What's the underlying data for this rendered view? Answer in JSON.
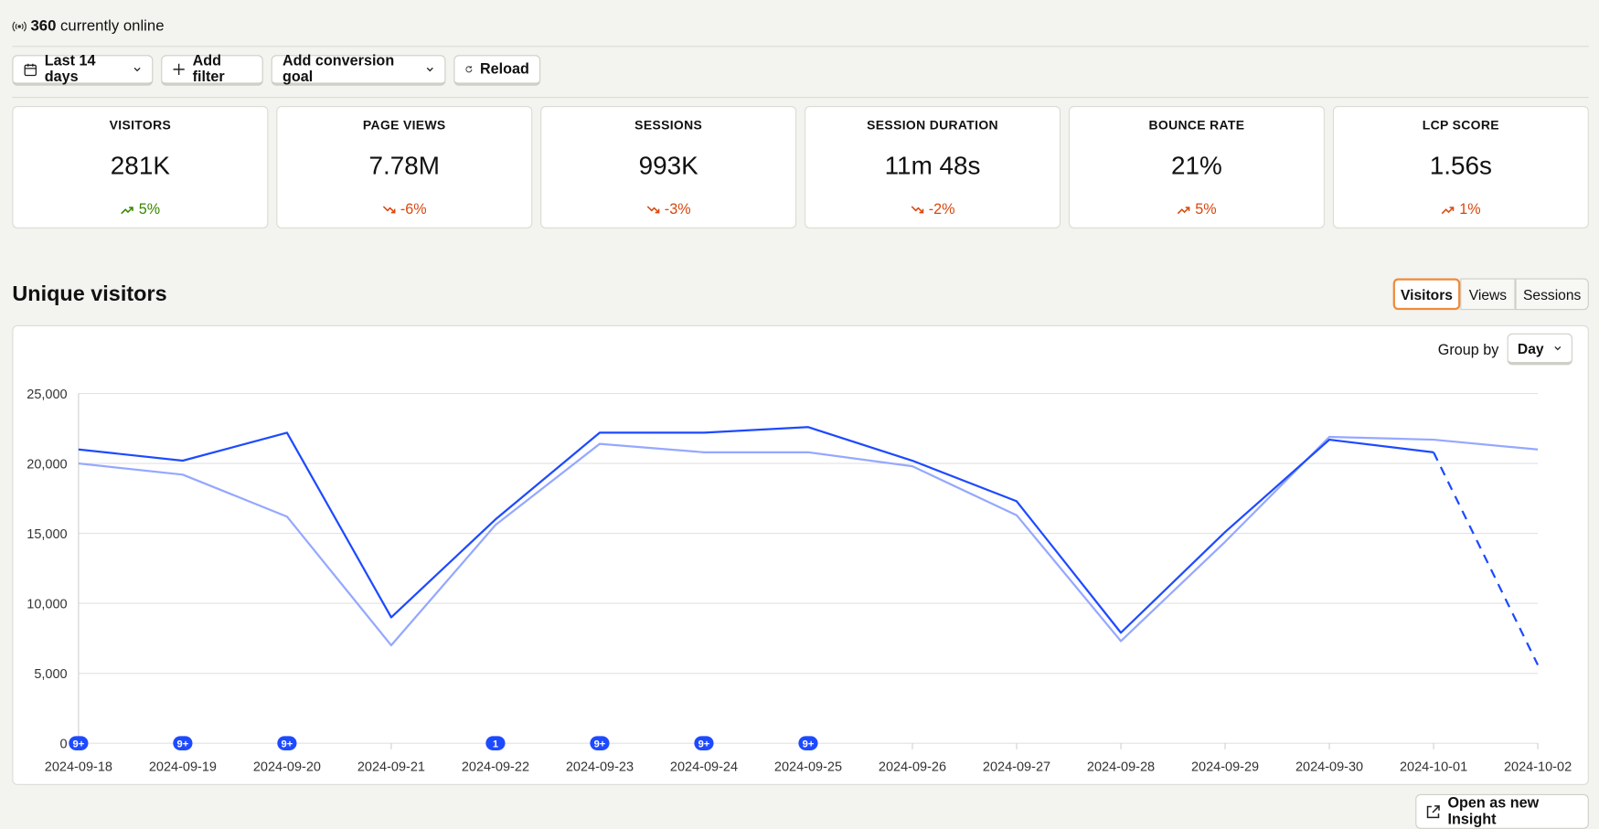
{
  "online": {
    "count": "360",
    "text": "currently online"
  },
  "toolbar": {
    "date_range": "Last 14 days",
    "add_filter": "Add filter",
    "conversion_goal": "Add conversion goal",
    "reload": "Reload"
  },
  "metrics": [
    {
      "label": "VISITORS",
      "value": "281K",
      "change": "5%",
      "trend": "up",
      "color": "#388600"
    },
    {
      "label": "PAGE VIEWS",
      "value": "7.78M",
      "change": "-6%",
      "trend": "down",
      "color": "#d9480f"
    },
    {
      "label": "SESSIONS",
      "value": "993K",
      "change": "-3%",
      "trend": "down",
      "color": "#d9480f"
    },
    {
      "label": "SESSION DURATION",
      "value": "11m 48s",
      "change": "-2%",
      "trend": "down",
      "color": "#d9480f"
    },
    {
      "label": "BOUNCE RATE",
      "value": "21%",
      "change": "5%",
      "trend": "up",
      "color": "#d9480f"
    },
    {
      "label": "LCP SCORE",
      "value": "1.56s",
      "change": "1%",
      "trend": "up",
      "color": "#d9480f"
    }
  ],
  "section": {
    "title": "Unique visitors",
    "tabs": [
      "Visitors",
      "Views",
      "Sessions"
    ],
    "active_tab": 0,
    "group_by_label": "Group by",
    "group_by_value": "Day",
    "open_insight": "Open as new Insight"
  },
  "chart_data": {
    "type": "line",
    "categories": [
      "2024-09-18",
      "2024-09-19",
      "2024-09-20",
      "2024-09-21",
      "2024-09-22",
      "2024-09-23",
      "2024-09-24",
      "2024-09-25",
      "2024-09-26",
      "2024-09-27",
      "2024-09-28",
      "2024-09-29",
      "2024-09-30",
      "2024-10-01",
      "2024-10-02"
    ],
    "series": [
      {
        "color": "#1d4aff",
        "dashed_from_index": 13,
        "values": [
          21000,
          20200,
          22200,
          9000,
          16000,
          22200,
          22200,
          22600,
          20200,
          17300,
          7900,
          15100,
          21700,
          20800,
          5600
        ]
      },
      {
        "color": "#95a8ff",
        "values": [
          20000,
          19200,
          16200,
          7000,
          15600,
          21400,
          20800,
          20800,
          19800,
          16300,
          7300,
          14400,
          21900,
          21700,
          21000
        ]
      }
    ],
    "annotation_badges": [
      "9+",
      "9+",
      "9+",
      null,
      "1",
      "9+",
      "9+",
      "9+",
      null,
      null,
      null,
      null,
      null,
      null,
      null
    ],
    "badge_color": "#1d4aff",
    "ylim": [
      0,
      25000
    ],
    "yticks": [
      0,
      {
        "value": 5000,
        "label": "5,000"
      },
      {
        "value": 10000,
        "label": "10,000"
      },
      {
        "value": 15000,
        "label": "15,000"
      },
      {
        "value": 20000,
        "label": "20,000"
      },
      {
        "value": 25000,
        "label": "25,000"
      }
    ],
    "grid": true
  }
}
